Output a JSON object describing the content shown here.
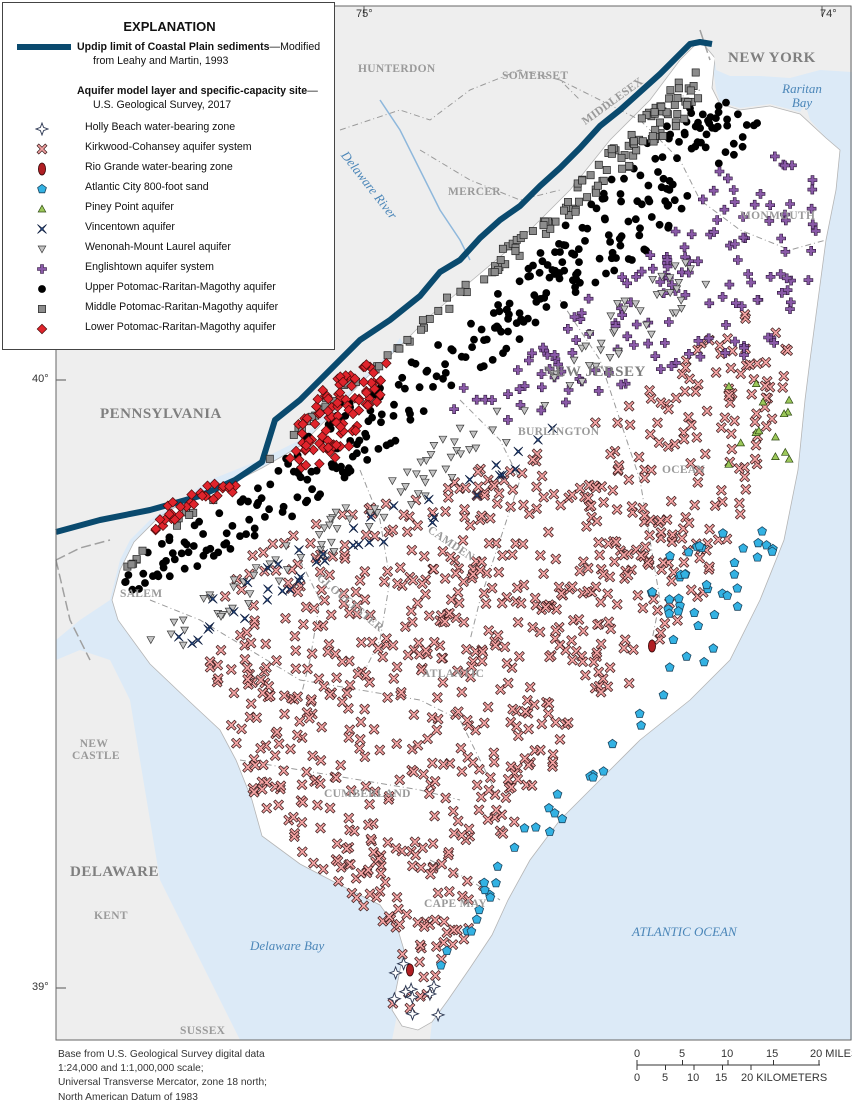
{
  "map": {
    "states": [
      "NEW YORK",
      "PENNSYLVANIA",
      "NEW JERSEY",
      "DELAWARE"
    ],
    "counties": [
      "HUNTERDON",
      "SOMERSET",
      "MIDDLESEX",
      "MERCER",
      "MONMOUTH",
      "BURLINGTON",
      "OCEAN",
      "CAMDEN",
      "GLOUCESTER",
      "SALEM",
      "ATLANTIC",
      "CUMBERLAND",
      "CAPE MAY",
      "NEW CASTLE",
      "KENT",
      "SUSSEX"
    ],
    "water_bodies": [
      "Delaware River",
      "Raritan Bay",
      "Delaware Bay",
      "ATLANTIC OCEAN"
    ],
    "graticule": {
      "lon_top": [
        "75°",
        "74°"
      ],
      "lat_left": [
        "40°",
        "39°"
      ]
    },
    "colors": {
      "ocean": "#dceaf7",
      "outer_land": "#eeeeee",
      "coastal_plain": "#ffffff",
      "updip_line": "#0a4a6e",
      "county_line": "#9a9a9a"
    }
  },
  "legend": {
    "title": "EXPLANATION",
    "updip_label": "Updip limit of Coastal Plain sediments",
    "updip_suffix": "—Modified",
    "updip_source": "from Leahy and Martin, 1993",
    "sites_heading": "Aquifer model layer and specific-capacity site",
    "sites_suffix": "—",
    "sites_source": "U.S. Geological Survey, 2017",
    "items": [
      {
        "label": "Holly Beach water-bearing zone",
        "icon": "star4-icon",
        "color": "#ffffff"
      },
      {
        "label": "Kirkwood-Cohansey aquifer system",
        "icon": "x-mark-icon",
        "color": "#f4a3a3"
      },
      {
        "label": "Rio Grande water-bearing zone",
        "icon": "ellipse-icon",
        "color": "#b01e23"
      },
      {
        "label": "Atlantic City 800-foot sand",
        "icon": "pentagon-icon",
        "color": "#33b2e3"
      },
      {
        "label": "Piney Point aquifer",
        "icon": "triangle-up-icon",
        "color": "#9cc85a"
      },
      {
        "label": "Vincentown aquifer",
        "icon": "star4-x-icon",
        "color": "#2e5ea9"
      },
      {
        "label": "Wenonah-Mount Laurel aquifer",
        "icon": "triangle-down-icon",
        "color": "#bcbcbc"
      },
      {
        "label": "Englishtown aquifer system",
        "icon": "plus-icon",
        "color": "#8a5aa8"
      },
      {
        "label": "Upper Potomac-Raritan-Magothy aquifer",
        "icon": "circle-icon",
        "color": "#000000"
      },
      {
        "label": "Middle Potomac-Raritan-Magothy aquifer",
        "icon": "square-icon",
        "color": "#8c8c8c"
      },
      {
        "label": "Lower Potomac-Raritan-Magothy aquifer",
        "icon": "diamond-icon",
        "color": "#e0242c"
      }
    ]
  },
  "footer": {
    "lines": [
      "Base from U.S. Geological Survey digital data",
      "1:24,000 and 1:1,000,000 scale;",
      "Universal Transverse Mercator, zone 18 north;",
      "North American Datum of 1983"
    ]
  },
  "scale": {
    "miles_ticks": [
      "0",
      "5",
      "10",
      "15",
      "20 MILES"
    ],
    "km_ticks": [
      "0",
      "5",
      "10",
      "15",
      "20 KILOMETERS"
    ]
  }
}
